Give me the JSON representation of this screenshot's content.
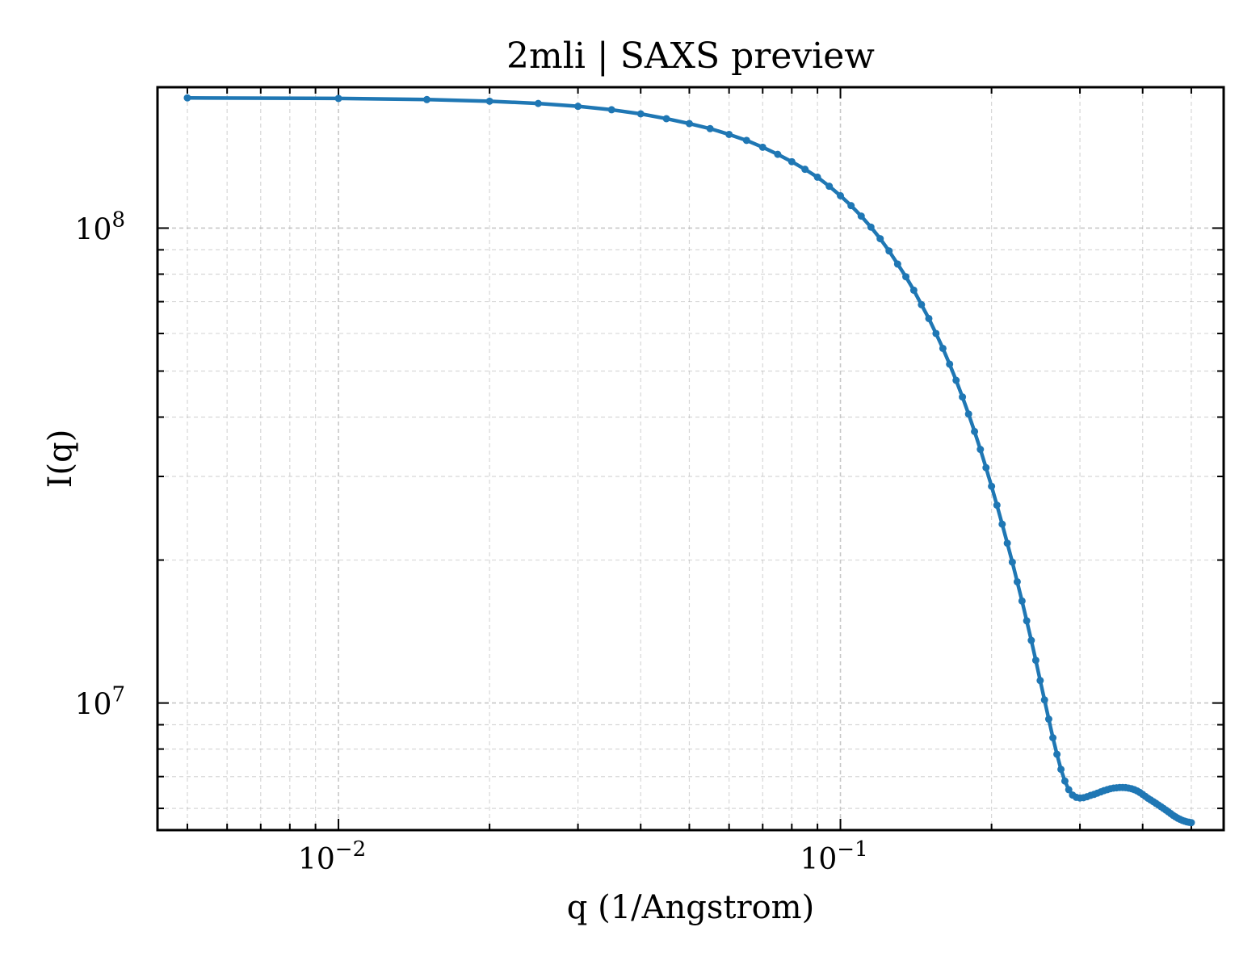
{
  "chart_data": {
    "type": "line",
    "title": "2mli | SAXS preview",
    "xlabel": "q (1/Angstrom)",
    "ylabel": "I(q)",
    "xscale": "log",
    "yscale": "log",
    "xlim": [
      0.00436,
      0.58
    ],
    "ylim": [
      5400000,
      198000000
    ],
    "grid": true,
    "x_major_ticks": [
      {
        "value": 0.01,
        "base": "10",
        "exp": "−2"
      },
      {
        "value": 0.1,
        "base": "10",
        "exp": "−1"
      }
    ],
    "y_major_ticks": [
      {
        "value": 10000000,
        "base": "10",
        "exp": "7"
      },
      {
        "value": 100000000,
        "base": "10",
        "exp": "8"
      }
    ],
    "series": [
      {
        "color": "#1f77b4",
        "x": [
          0.005,
          0.01,
          0.015,
          0.02,
          0.025,
          0.03,
          0.035,
          0.04,
          0.045,
          0.05,
          0.055,
          0.06,
          0.065,
          0.07,
          0.075,
          0.08,
          0.085,
          0.09,
          0.095,
          0.1,
          0.105,
          0.11,
          0.115,
          0.12,
          0.125,
          0.13,
          0.135,
          0.14,
          0.145,
          0.15,
          0.155,
          0.16,
          0.165,
          0.17,
          0.175,
          0.18,
          0.185,
          0.19,
          0.195,
          0.2,
          0.205,
          0.21,
          0.215,
          0.22,
          0.225,
          0.23,
          0.235,
          0.24,
          0.245,
          0.25,
          0.255,
          0.26,
          0.265,
          0.27,
          0.275,
          0.28,
          0.285,
          0.29,
          0.295,
          0.3,
          0.305,
          0.31,
          0.315,
          0.32,
          0.325,
          0.33,
          0.335,
          0.34,
          0.345,
          0.35,
          0.355,
          0.36,
          0.365,
          0.37,
          0.375,
          0.38,
          0.385,
          0.39,
          0.395,
          0.4,
          0.405,
          0.41,
          0.415,
          0.42,
          0.425,
          0.43,
          0.435,
          0.44,
          0.445,
          0.45,
          0.455,
          0.46,
          0.465,
          0.47,
          0.475,
          0.48,
          0.485,
          0.49,
          0.495,
          0.5
        ],
        "y": [
          188000000,
          187500000,
          186500000,
          185000000,
          183000000,
          180500000,
          177500000,
          174000000,
          170000000,
          166000000,
          162000000,
          157500000,
          153000000,
          148000000,
          143000000,
          138000000,
          133000000,
          128000000,
          122500000,
          117000000,
          111500000,
          106000000,
          100500000,
          95000000,
          89500000,
          84000000,
          79000000,
          74000000,
          69000000,
          64500000,
          60000000,
          55800000,
          51700000,
          47800000,
          44100000,
          40600000,
          37300000,
          34200000,
          31300000,
          28600000,
          26100000,
          23800000,
          21700000,
          19800000,
          18000000,
          16400000,
          14900000,
          13550000,
          12300000,
          11150000,
          10150000,
          9250000,
          8450000,
          7800000,
          7250000,
          6850000,
          6570000,
          6400000,
          6330000,
          6310000,
          6320000,
          6350000,
          6390000,
          6420000,
          6460000,
          6500000,
          6540000,
          6570000,
          6600000,
          6620000,
          6630000,
          6640000,
          6640000,
          6635000,
          6620000,
          6600000,
          6570000,
          6530000,
          6480000,
          6420000,
          6360000,
          6300000,
          6250000,
          6200000,
          6150000,
          6100000,
          6050000,
          6000000,
          5950000,
          5900000,
          5850000,
          5800000,
          5760000,
          5720000,
          5690000,
          5660000,
          5640000,
          5620000,
          5610000,
          5600000
        ]
      }
    ]
  }
}
